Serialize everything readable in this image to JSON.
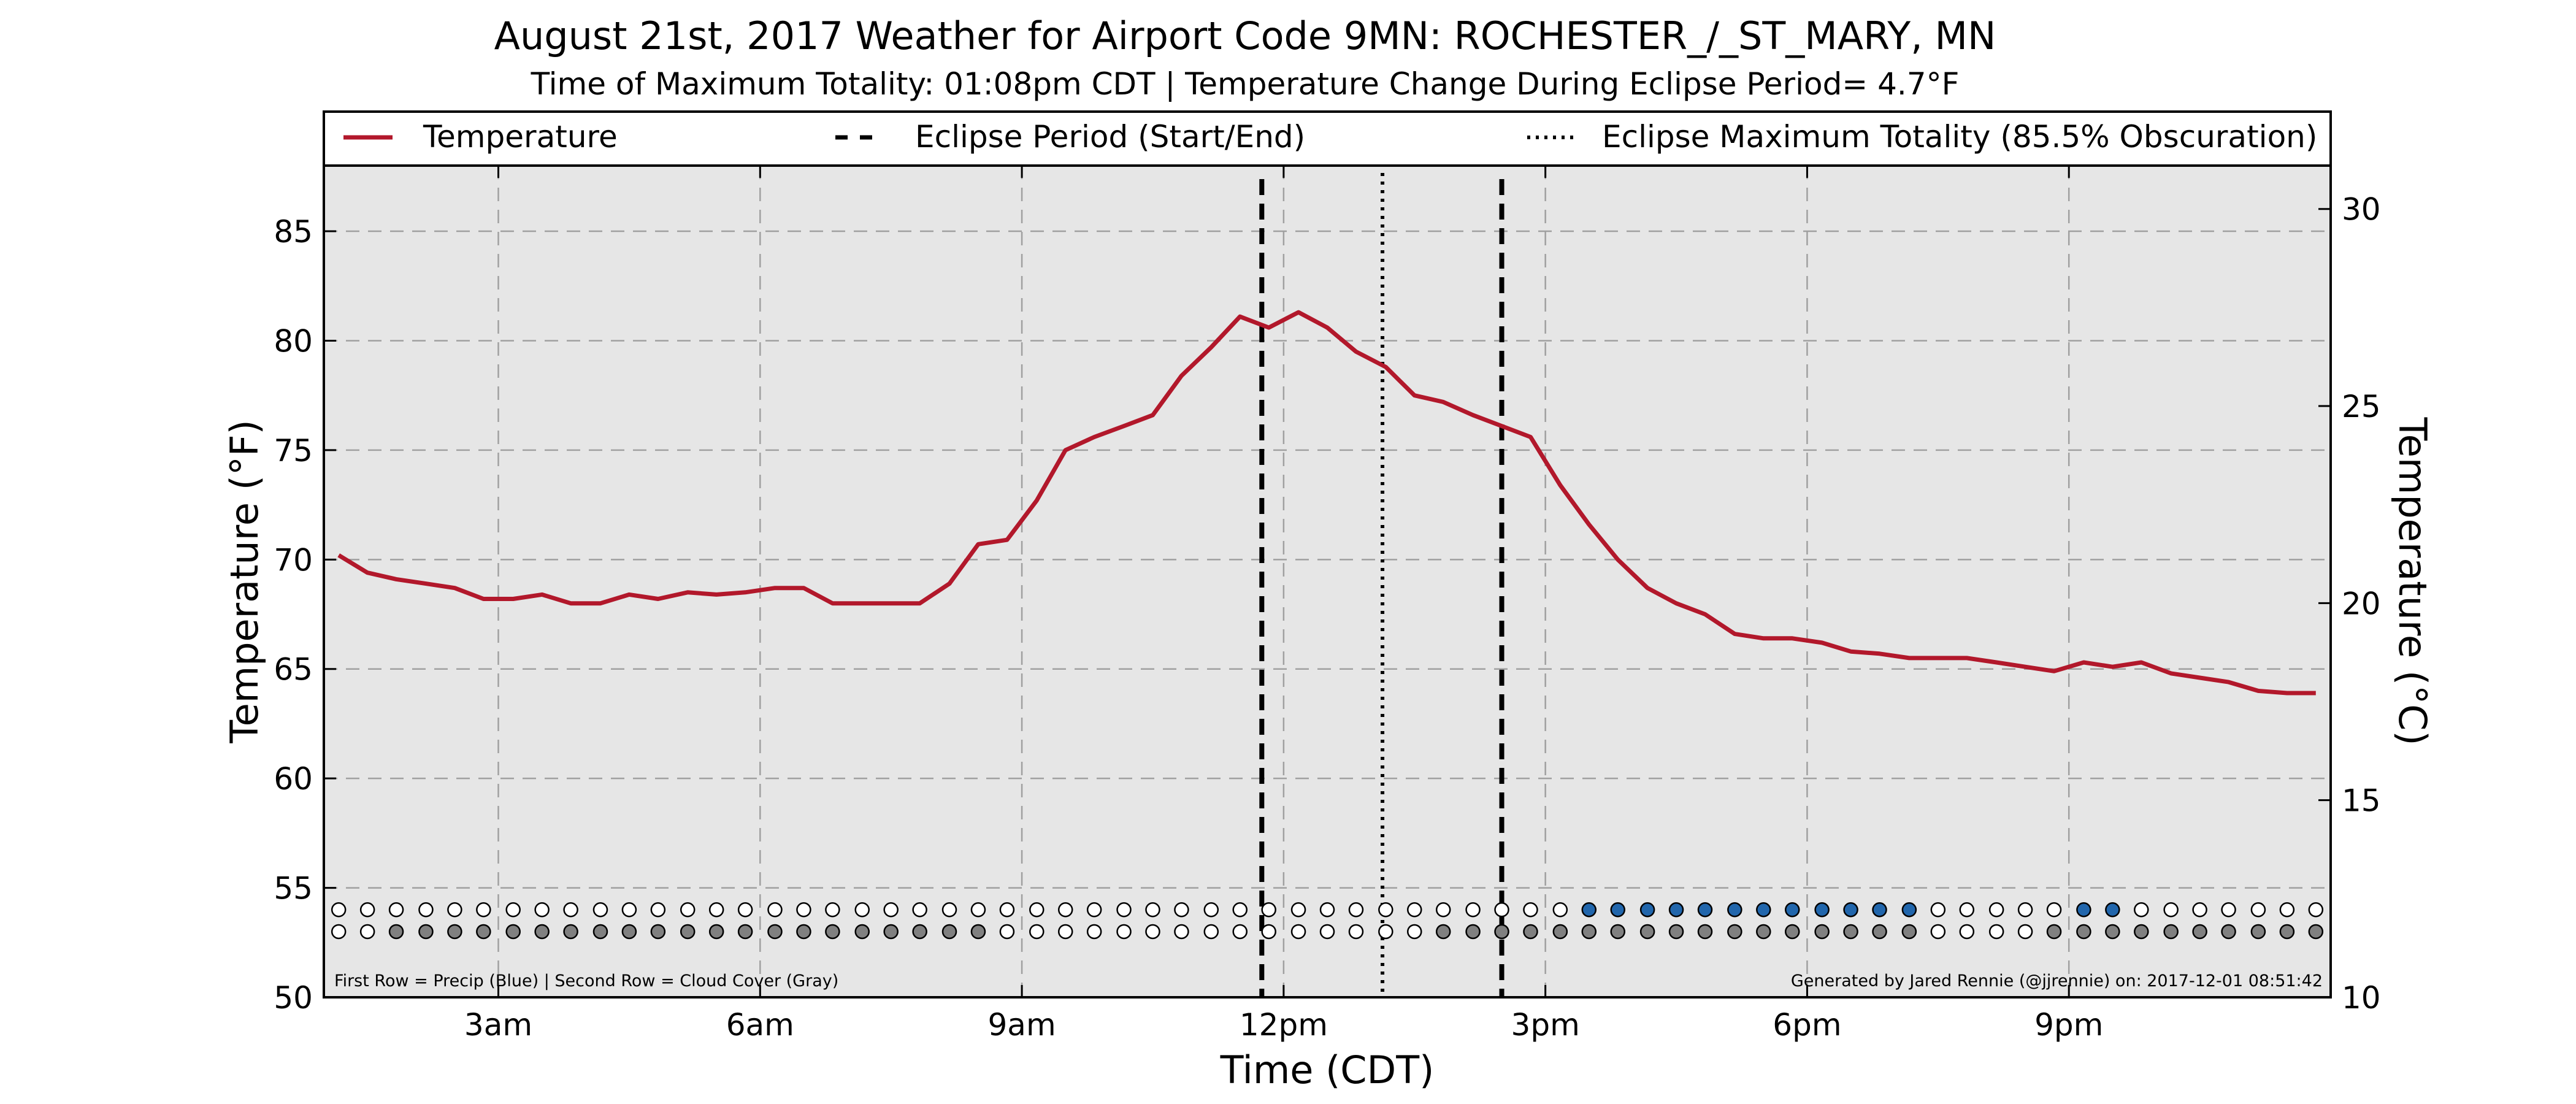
{
  "title": "August 21st, 2017 Weather for Airport Code 9MN: ROCHESTER_/_ST_MARY, MN",
  "subtitle": "Time of Maximum Totality: 01:08pm CDT | Temperature Change During Eclipse Period= 4.7°F",
  "colors": {
    "temperature_line": "#b2182b",
    "precip_fill": "#2166ac",
    "cloud_fill": "#808080",
    "plot_background": "#e6e6e6",
    "eclipse_lines": "#000000"
  },
  "legend": {
    "temperature": "Temperature",
    "eclipse_period": "Eclipse Period (Start/End)",
    "eclipse_max": "Eclipse Maximum Totality (85.5% Obscuration)"
  },
  "footnote_left": "First Row = Precip (Blue) | Second Row = Cloud Cover (Gray)",
  "footnote_right": "Generated by Jared Rennie (@jjrennie) on: 2017-12-01 08:51:42",
  "chart_data": {
    "type": "line",
    "xlabel": "Time (CDT)",
    "ylabel": "Temperature (°F)",
    "ylabel_right": "Temperature (°C)",
    "xlim": [
      1.0,
      24.0
    ],
    "ylim": [
      50,
      88
    ],
    "ylim_right_c": [
      10,
      31.1
    ],
    "x_ticks": [
      3,
      6,
      9,
      12,
      15,
      18,
      21
    ],
    "x_tick_labels": [
      "3am",
      "6am",
      "9am",
      "12pm",
      "3pm",
      "6pm",
      "9pm"
    ],
    "y_ticks": [
      50,
      55,
      60,
      65,
      70,
      75,
      80,
      85
    ],
    "y_tick_labels": [
      "50",
      "55",
      "60",
      "65",
      "70",
      "75",
      "80",
      "85"
    ],
    "y_ticks_right": [
      10,
      15,
      20,
      25,
      30
    ],
    "y_tick_labels_right": [
      "10",
      "15",
      "20",
      "25",
      "30"
    ],
    "grid": true,
    "legend_position": "top",
    "eclipse_start": 11.75,
    "eclipse_end": 14.5,
    "eclipse_max": 13.133,
    "series": [
      {
        "name": "Temperature",
        "x": [
          1.17,
          1.5,
          1.83,
          2.17,
          2.5,
          2.83,
          3.17,
          3.5,
          3.83,
          4.17,
          4.5,
          4.83,
          5.17,
          5.5,
          5.83,
          6.17,
          6.5,
          6.83,
          7.17,
          7.5,
          7.83,
          8.17,
          8.5,
          8.83,
          9.17,
          9.5,
          9.83,
          10.17,
          10.5,
          10.83,
          11.17,
          11.5,
          11.83,
          12.17,
          12.5,
          12.83,
          13.17,
          13.5,
          13.83,
          14.17,
          14.5,
          14.83,
          15.17,
          15.5,
          15.83,
          16.17,
          16.5,
          16.83,
          17.17,
          17.5,
          17.83,
          18.17,
          18.5,
          18.83,
          19.17,
          19.5,
          19.83,
          20.17,
          20.5,
          20.83,
          21.17,
          21.5,
          21.83,
          22.17,
          22.5,
          22.83,
          23.17,
          23.5,
          23.83
        ],
        "y": [
          70.2,
          69.4,
          69.1,
          68.9,
          68.7,
          68.2,
          68.2,
          68.4,
          68.0,
          68.0,
          68.4,
          68.2,
          68.5,
          68.4,
          68.5,
          68.7,
          68.7,
          68.0,
          68.0,
          68.0,
          68.0,
          68.9,
          70.7,
          70.9,
          72.7,
          75.0,
          75.6,
          76.1,
          76.6,
          78.4,
          79.7,
          81.1,
          80.6,
          81.3,
          80.6,
          79.5,
          78.8,
          77.5,
          77.2,
          76.6,
          76.1,
          75.6,
          73.4,
          71.6,
          70.0,
          68.7,
          68.0,
          67.5,
          66.6,
          66.4,
          66.4,
          66.2,
          65.8,
          65.7,
          65.5,
          65.5,
          65.5,
          65.3,
          65.1,
          64.9,
          65.3,
          65.1,
          65.3,
          64.8,
          64.6,
          64.4,
          64.0,
          63.9,
          63.9
        ]
      }
    ],
    "marker_rows": {
      "x": [
        1.17,
        1.5,
        1.83,
        2.17,
        2.5,
        2.83,
        3.17,
        3.5,
        3.83,
        4.17,
        4.5,
        4.83,
        5.17,
        5.5,
        5.83,
        6.17,
        6.5,
        6.83,
        7.17,
        7.5,
        7.83,
        8.17,
        8.5,
        8.83,
        9.17,
        9.5,
        9.83,
        10.17,
        10.5,
        10.83,
        11.17,
        11.5,
        11.83,
        12.17,
        12.5,
        12.83,
        13.17,
        13.5,
        13.83,
        14.17,
        14.5,
        14.83,
        15.17,
        15.5,
        15.83,
        16.17,
        16.5,
        16.83,
        17.17,
        17.5,
        17.83,
        18.17,
        18.5,
        18.83,
        19.17,
        19.5,
        19.83,
        20.17,
        20.5,
        20.83,
        21.17,
        21.5,
        21.83,
        22.17,
        22.5,
        22.83,
        23.17,
        23.5,
        23.83
      ],
      "precip_y": 54,
      "cloud_y": 53,
      "precip": [
        0,
        0,
        0,
        0,
        0,
        0,
        0,
        0,
        0,
        0,
        0,
        0,
        0,
        0,
        0,
        0,
        0,
        0,
        0,
        0,
        0,
        0,
        0,
        0,
        0,
        0,
        0,
        0,
        0,
        0,
        0,
        0,
        0,
        0,
        0,
        0,
        0,
        0,
        0,
        0,
        0,
        0,
        0,
        1,
        1,
        1,
        1,
        1,
        1,
        1,
        1,
        1,
        1,
        1,
        1,
        0,
        0,
        0,
        0,
        0,
        1,
        1,
        0,
        0,
        0,
        0,
        0,
        0,
        0
      ],
      "cloud": [
        0,
        0,
        1,
        1,
        1,
        1,
        1,
        1,
        1,
        1,
        1,
        1,
        1,
        1,
        1,
        1,
        1,
        1,
        1,
        1,
        1,
        1,
        1,
        0,
        0,
        0,
        0,
        0,
        0,
        0,
        0,
        0,
        0,
        0,
        0,
        0,
        0,
        0,
        1,
        1,
        1,
        1,
        1,
        1,
        1,
        1,
        1,
        1,
        1,
        1,
        1,
        1,
        1,
        1,
        1,
        0,
        0,
        0,
        0,
        1,
        1,
        1,
        1,
        1,
        1,
        1,
        1,
        1,
        1
      ]
    }
  }
}
